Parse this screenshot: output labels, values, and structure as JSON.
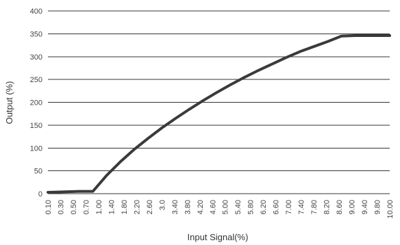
{
  "chart_data": {
    "type": "line",
    "xlabel": "Input Signal(%)",
    "ylabel": "Output (%)",
    "ylim": [
      0,
      400
    ],
    "yticks": [
      0,
      50,
      100,
      150,
      200,
      250,
      300,
      350,
      400
    ],
    "x_tick_labels": [
      "0.10",
      "0.30",
      "0.50",
      "0.70",
      "1.00",
      "1.40",
      "1.80",
      "2.20",
      "2.60",
      "3.0",
      "3.40",
      "3.80",
      "4.20",
      "4.60",
      "5.00",
      "5.40",
      "5.80",
      "6.20",
      "6.60",
      "7.00",
      "7.40",
      "7.80",
      "8.20",
      "8.60",
      "9.00",
      "9.40",
      "9.80",
      "10.00"
    ],
    "grid": "horizontal",
    "legend": "none",
    "series": [
      {
        "color": "#3a3a3a",
        "x": [
          0.1,
          1.0,
          1.4,
          1.8,
          2.2,
          2.6,
          3.0,
          3.4,
          3.8,
          4.2,
          4.6,
          5.0,
          5.4,
          5.8,
          6.2,
          6.6,
          7.0,
          7.4,
          7.8,
          8.2,
          8.6,
          9.0,
          9.4,
          9.8,
          10.0
        ],
        "y": [
          3,
          5,
          5,
          40,
          70,
          97,
          121,
          144,
          165,
          185,
          204,
          222,
          239,
          255,
          270,
          284,
          298,
          311,
          322,
          333,
          345,
          346,
          346,
          346,
          346
        ]
      }
    ]
  }
}
